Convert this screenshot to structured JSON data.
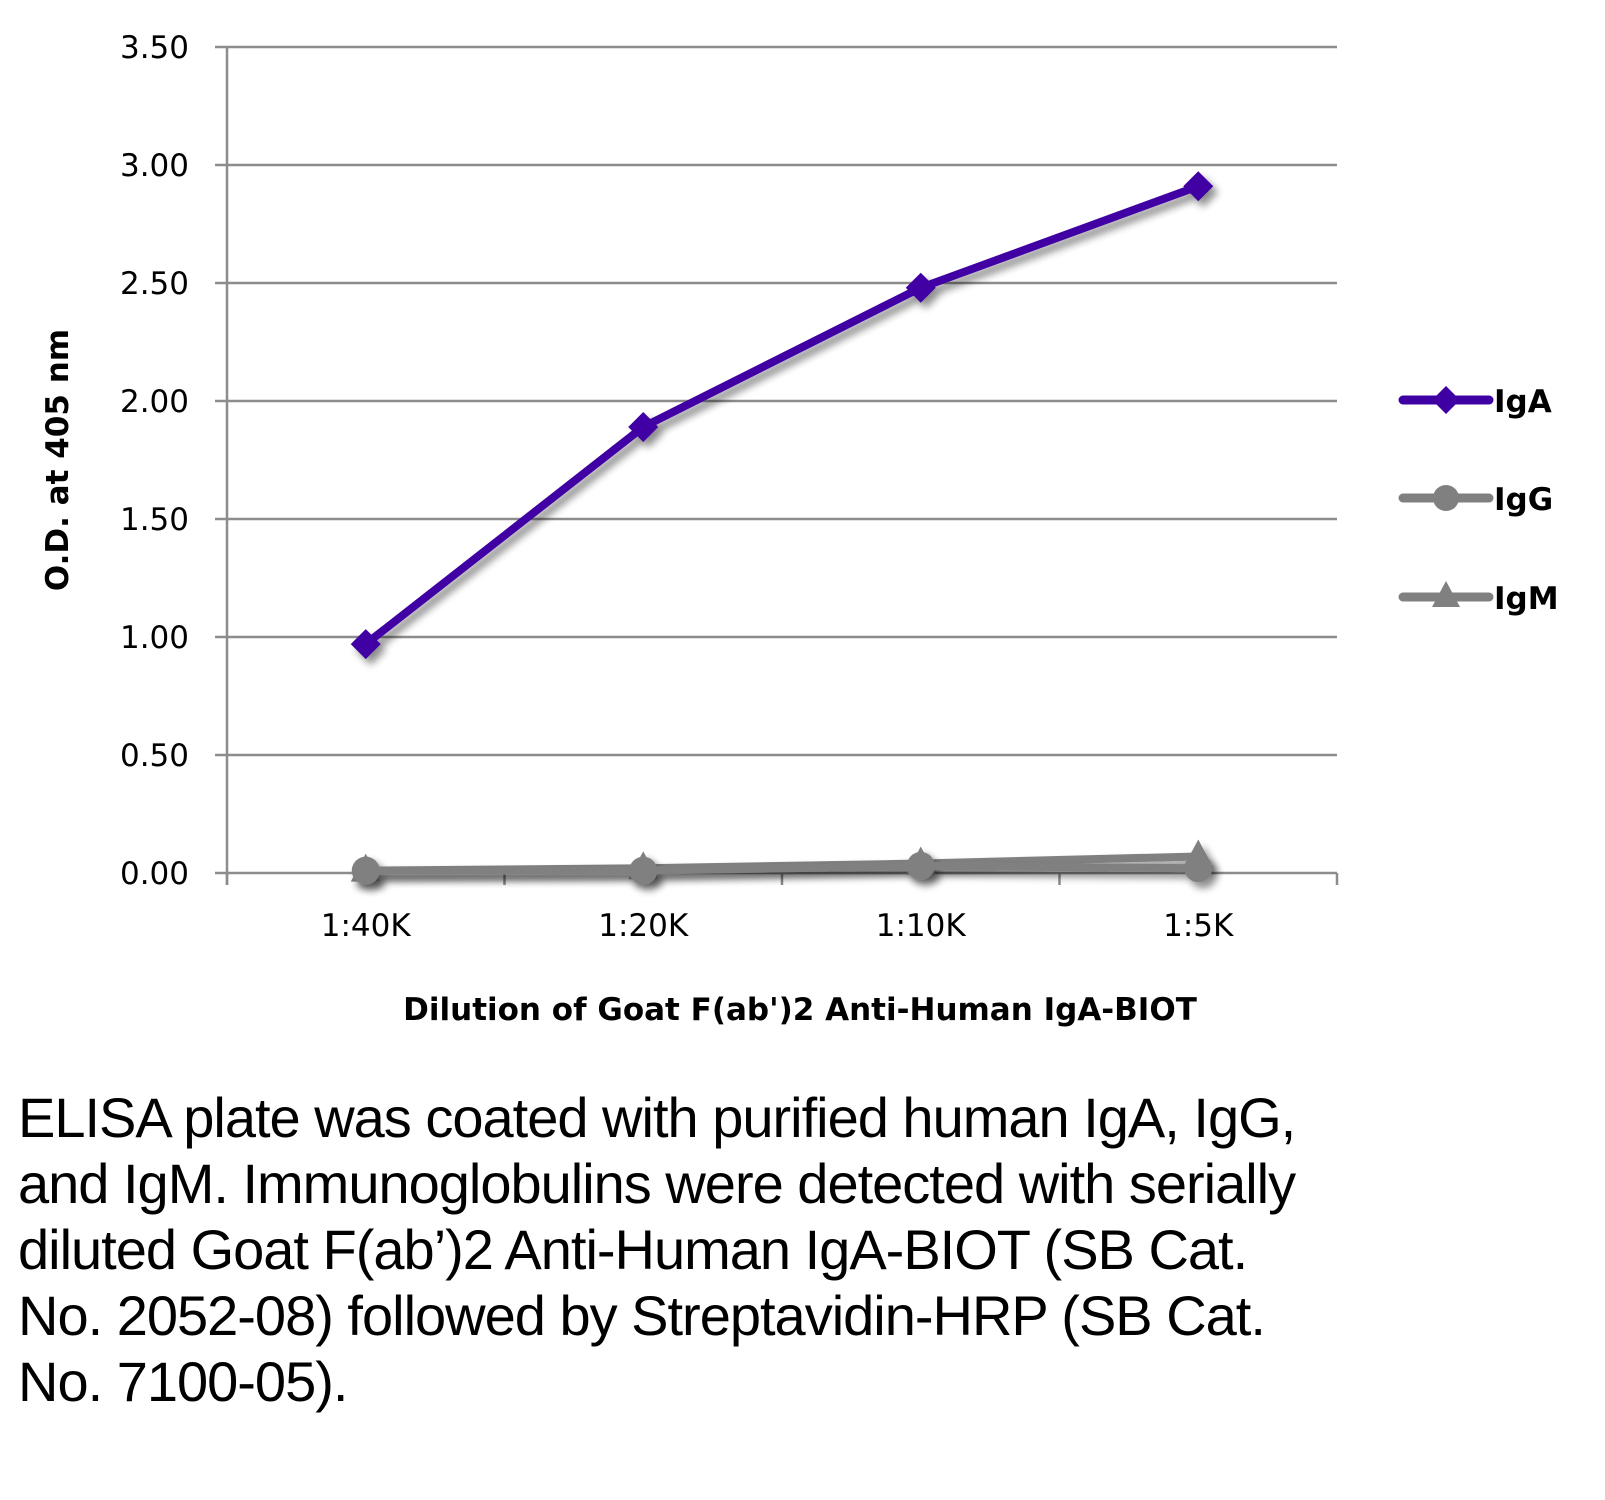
{
  "chart_data": {
    "type": "line",
    "title": "",
    "xlabel": "Dilution of Goat F(ab')2 Anti-Human IgA-BIOT",
    "ylabel": "O.D. at 405 nm",
    "categories": [
      "1:40K",
      "1:20K",
      "1:10K",
      "1:5K"
    ],
    "ylim": [
      0,
      3.5
    ],
    "yticks": [
      "0.00",
      "0.50",
      "1.00",
      "1.50",
      "2.00",
      "2.50",
      "3.00",
      "3.50"
    ],
    "ytick_values": [
      0,
      0.5,
      1.0,
      1.5,
      2.0,
      2.5,
      3.0,
      3.5
    ],
    "grid": "horizontal",
    "legend_position": "right",
    "series": [
      {
        "name": "IgA",
        "values": [
          0.97,
          1.89,
          2.48,
          2.91
        ],
        "color": "#3f00a3",
        "marker": "diamond"
      },
      {
        "name": "IgG",
        "values": [
          0.01,
          0.01,
          0.03,
          0.02
        ],
        "color": "#808080",
        "marker": "circle"
      },
      {
        "name": "IgM",
        "values": [
          0.01,
          0.02,
          0.04,
          0.07
        ],
        "color": "#808080",
        "marker": "triangle"
      }
    ]
  },
  "caption": "ELISA plate was coated with purified human IgA, IgG, and IgM.  Immunoglobulins were detected with serially diluted Goat F(ab’)2 Anti-Human IgA-BIOT (SB Cat. No. 2052-08) followed by Streptavidin-HRP (SB Cat. No. 7100-05)."
}
